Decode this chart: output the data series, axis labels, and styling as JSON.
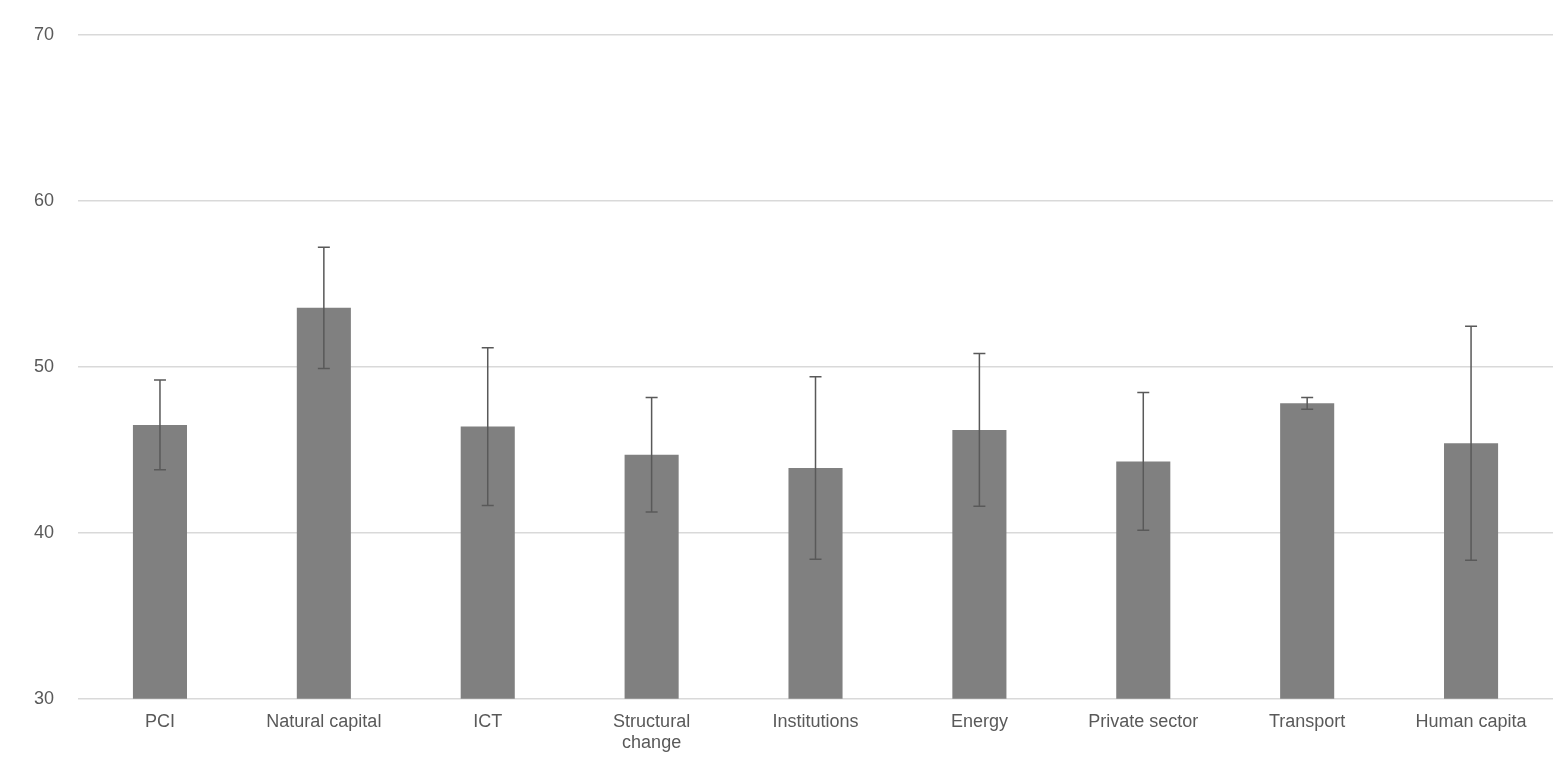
{
  "chart_data": {
    "type": "bar",
    "categories": [
      "PCI",
      "Natural capital",
      "ICT",
      "Structural change",
      "Institutions",
      "Energy",
      "Private sector",
      "Transport",
      "Human capita"
    ],
    "values": [
      46.5,
      53.55,
      46.4,
      44.7,
      43.9,
      46.2,
      44.3,
      47.8,
      45.4
    ],
    "errors": [
      2.7,
      3.65,
      4.75,
      3.45,
      5.5,
      4.6,
      4.15,
      0.35,
      7.05
    ],
    "color": "#808080",
    "ylim": [
      30,
      70
    ],
    "yticks": [
      30,
      40,
      50,
      60,
      70
    ],
    "grid": "y",
    "legend": false
  }
}
